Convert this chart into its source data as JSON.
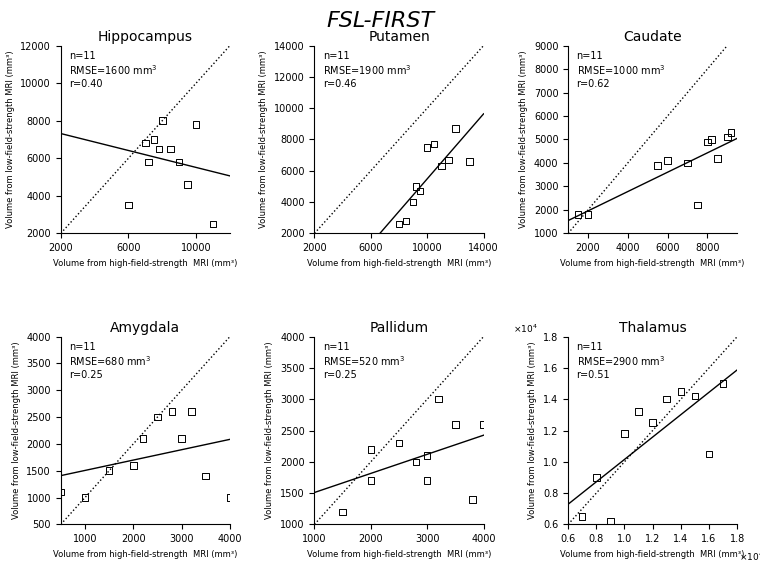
{
  "title": "FSL-FIRST",
  "subplots": [
    {
      "title": "Hippocampus",
      "n": 11,
      "rmse": "1600",
      "r": "0.40",
      "x": [
        7000,
        7500,
        7200,
        7800,
        8000,
        8500,
        9000,
        9500,
        10000,
        6000,
        11000
      ],
      "y": [
        6800,
        7000,
        5800,
        6500,
        8000,
        6500,
        5800,
        4600,
        7800,
        3500,
        2500
      ],
      "xlim": [
        2000,
        12000
      ],
      "ylim": [
        2000,
        12000
      ],
      "xticks": [
        2000,
        6000,
        10000
      ],
      "yticks": [
        2000,
        4000,
        6000,
        8000,
        10000,
        12000
      ],
      "use_sci": false
    },
    {
      "title": "Putamen",
      "n": 11,
      "rmse": "1900",
      "r": "0.46",
      "x": [
        8000,
        9000,
        9500,
        10000,
        10500,
        11000,
        11500,
        12000,
        13000,
        8500,
        9200
      ],
      "y": [
        2600,
        4000,
        4700,
        7500,
        7700,
        6300,
        6700,
        8700,
        6600,
        2800,
        5000
      ],
      "xlim": [
        2000,
        14000
      ],
      "ylim": [
        2000,
        14000
      ],
      "xticks": [
        2000,
        6000,
        10000,
        14000
      ],
      "yticks": [
        2000,
        4000,
        6000,
        8000,
        10000,
        12000,
        14000
      ],
      "use_sci": false
    },
    {
      "title": "Caudate",
      "n": 11,
      "rmse": "1000",
      "r": "0.62",
      "x": [
        1500,
        2000,
        5500,
        6000,
        7000,
        7500,
        8000,
        8200,
        8500,
        9000,
        9200
      ],
      "y": [
        1800,
        1800,
        3900,
        4100,
        4000,
        2200,
        4900,
        5000,
        4200,
        5100,
        5300
      ],
      "xlim": [
        1000,
        9500
      ],
      "ylim": [
        1000,
        9000
      ],
      "xticks": [
        2000,
        4000,
        6000,
        8000
      ],
      "yticks": [
        1000,
        2000,
        3000,
        4000,
        5000,
        6000,
        7000,
        8000,
        9000
      ],
      "use_sci": false
    },
    {
      "title": "Amygdala",
      "n": 11,
      "rmse": "680",
      "r": "0.25",
      "x": [
        500,
        1000,
        1500,
        2000,
        2200,
        2500,
        2800,
        3000,
        3200,
        3500,
        4000
      ],
      "y": [
        1100,
        1000,
        1500,
        1600,
        2100,
        2500,
        2600,
        2100,
        2600,
        1400,
        1000
      ],
      "xlim": [
        500,
        4000
      ],
      "ylim": [
        500,
        4000
      ],
      "xticks": [
        1000,
        2000,
        3000,
        4000
      ],
      "yticks": [
        500,
        1000,
        1500,
        2000,
        2500,
        3000,
        3500,
        4000
      ],
      "use_sci": false
    },
    {
      "title": "Pallidum",
      "n": 11,
      "rmse": "520",
      "r": "0.25",
      "x": [
        1500,
        2000,
        2000,
        2500,
        2800,
        3000,
        3000,
        3200,
        3500,
        3800,
        4000
      ],
      "y": [
        1200,
        1700,
        2200,
        2300,
        2000,
        2100,
        1700,
        3000,
        2600,
        1400,
        2600
      ],
      "xlim": [
        1000,
        4000
      ],
      "ylim": [
        1000,
        4000
      ],
      "xticks": [
        1000,
        2000,
        3000,
        4000
      ],
      "yticks": [
        1000,
        1500,
        2000,
        2500,
        3000,
        3500,
        4000
      ],
      "use_sci": false
    },
    {
      "title": "Thalamus",
      "n": 11,
      "rmse": "2900",
      "r": "0.51",
      "x": [
        7000,
        8000,
        9000,
        10000,
        11000,
        12000,
        13000,
        14000,
        15000,
        16000,
        17000
      ],
      "y": [
        6500,
        9000,
        6200,
        11800,
        13200,
        12500,
        14000,
        14500,
        14200,
        10500,
        15000
      ],
      "xlim": [
        6000,
        18000
      ],
      "ylim": [
        6000,
        18000
      ],
      "xticks": [
        6000,
        8000,
        10000,
        12000,
        14000,
        16000,
        18000
      ],
      "yticks": [
        6000,
        8000,
        10000,
        12000,
        14000,
        16000,
        18000
      ],
      "use_sci": true
    }
  ],
  "xlabel": "Volume from high-field-strength  MRI (mm³)",
  "ylabel": "Volume from low-field-strength MRI (mm³)"
}
